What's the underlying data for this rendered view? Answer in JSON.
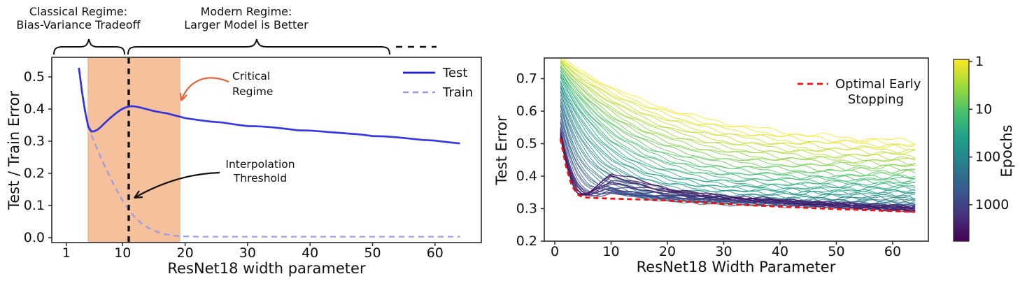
{
  "figure": {
    "background": "#ffffff",
    "top_annotations": {
      "classical": {
        "line1": "Classical Regime:",
        "line2": "Bias-Variance Tradeoff"
      },
      "modern": {
        "line1": "Modern Regime:",
        "line2": "Larger Model is Better"
      }
    }
  },
  "chart_data": [
    {
      "type": "line",
      "title": "",
      "xlabel": "ResNet18 width parameter",
      "ylabel": "Test / Train Error",
      "xlim": [
        0,
        67.5
      ],
      "ylim": [
        -0.015,
        0.561
      ],
      "grid": false,
      "legend_position": "upper right",
      "x_ticks": [
        "1",
        "10",
        "20",
        "30",
        "40",
        "50",
        "60"
      ],
      "x_tick_values": [
        1,
        10,
        20,
        30,
        40,
        50,
        60
      ],
      "y_ticks": [
        "0.0",
        "0.1",
        "0.2",
        "0.3",
        "0.4",
        "0.5"
      ],
      "y_tick_values": [
        0,
        0.1,
        0.2,
        0.3,
        0.4,
        0.5
      ],
      "critical_band": {
        "x_from": 4.4,
        "x_to": 19.3,
        "color": "#f5c19c"
      },
      "interpolation_threshold_x": 11,
      "annotations": {
        "critical_regime": {
          "line1": "Critical",
          "line2": "Regime",
          "color": "#e8623c"
        },
        "interpolation_threshold": {
          "line1": "Interpolation",
          "line2": "Threshold",
          "color": "#17100a"
        }
      },
      "series": [
        {
          "name": "Test",
          "color": "#1d1de0",
          "style": "solid",
          "x": [
            3,
            3.5,
            4,
            4.5,
            5,
            5.5,
            6,
            6.5,
            7,
            7.5,
            8,
            8.5,
            9,
            9.5,
            10,
            10.5,
            11,
            11.5,
            12,
            13,
            14,
            15,
            16,
            17,
            18,
            19,
            20,
            21,
            22,
            24,
            26,
            28,
            30,
            32,
            34,
            36,
            38,
            40,
            42,
            44,
            46,
            48,
            50,
            52,
            54,
            56,
            58,
            60,
            62,
            64
          ],
          "values": [
            0.528,
            0.452,
            0.392,
            0.345,
            0.33,
            0.331,
            0.336,
            0.344,
            0.354,
            0.363,
            0.372,
            0.38,
            0.388,
            0.395,
            0.401,
            0.405,
            0.408,
            0.409,
            0.408,
            0.404,
            0.399,
            0.394,
            0.39,
            0.387,
            0.382,
            0.377,
            0.372,
            0.369,
            0.366,
            0.361,
            0.358,
            0.352,
            0.347,
            0.346,
            0.343,
            0.339,
            0.334,
            0.333,
            0.33,
            0.327,
            0.324,
            0.321,
            0.316,
            0.315,
            0.312,
            0.308,
            0.304,
            0.302,
            0.297,
            0.293
          ]
        },
        {
          "name": "Train",
          "color": "#9a9ae2",
          "style": "dashed",
          "x": [
            3,
            3.5,
            4,
            4.5,
            5,
            5.5,
            6,
            6.5,
            7,
            7.5,
            8,
            8.5,
            9,
            9.5,
            10,
            10.5,
            11,
            11.5,
            12,
            13,
            14,
            15,
            16,
            17,
            18,
            19,
            20,
            21,
            22,
            24,
            26,
            28,
            30,
            32,
            34,
            36,
            38,
            40,
            42,
            44,
            46,
            48,
            50,
            52,
            54,
            56,
            58,
            60,
            62,
            64
          ],
          "values": [
            0.528,
            0.452,
            0.392,
            0.345,
            0.318,
            0.296,
            0.272,
            0.25,
            0.228,
            0.208,
            0.188,
            0.168,
            0.15,
            0.132,
            0.115,
            0.1,
            0.086,
            0.074,
            0.063,
            0.045,
            0.032,
            0.022,
            0.015,
            0.01,
            0.007,
            0.005,
            0.004,
            0.004,
            0.003,
            0.003,
            0.003,
            0.003,
            0.003,
            0.003,
            0.003,
            0.003,
            0.003,
            0.003,
            0.003,
            0.003,
            0.003,
            0.003,
            0.003,
            0.003,
            0.003,
            0.003,
            0.003,
            0.003,
            0.003,
            0.003
          ]
        }
      ]
    },
    {
      "type": "line",
      "title": "",
      "xlabel": "ResNet18 Width Parameter",
      "ylabel": "Test Error",
      "xlim": [
        -1.9,
        66.5
      ],
      "ylim": [
        0.2,
        0.763
      ],
      "grid": false,
      "x_ticks": [
        "0",
        "10",
        "20",
        "30",
        "40",
        "50",
        "60"
      ],
      "x_tick_values": [
        0,
        10,
        20,
        30,
        40,
        50,
        60
      ],
      "y_ticks": [
        "0.2",
        "0.3",
        "0.4",
        "0.5",
        "0.6",
        "0.7"
      ],
      "y_tick_values": [
        0.2,
        0.3,
        0.4,
        0.5,
        0.6,
        0.7
      ],
      "legend": {
        "line1": "Optimal Early",
        "line2": "Stopping"
      },
      "optimal_early_stopping": {
        "name": "Optimal Early Stopping",
        "color": "#ee1212",
        "style": "dashed",
        "x": [
          1,
          2,
          3,
          4,
          5,
          6,
          8,
          10,
          12,
          16,
          20,
          26,
          32,
          40,
          48,
          56,
          64
        ],
        "values": [
          0.515,
          0.43,
          0.372,
          0.344,
          0.335,
          0.334,
          0.332,
          0.331,
          0.33,
          0.328,
          0.325,
          0.319,
          0.313,
          0.306,
          0.3,
          0.295,
          0.29
        ]
      },
      "epoch_curves": {
        "colormap": "viridis reversed (yellow = 1 epoch, dark purple = thousands)",
        "rendered_curve_count": 56,
        "x": [
          1,
          2,
          3,
          4,
          5,
          6,
          8,
          10,
          12,
          16,
          20,
          26,
          32,
          40,
          48,
          56,
          64
        ],
        "anchors": [
          {
            "epochs": 1,
            "values": [
              0.767,
              0.755,
              0.743,
              0.732,
              0.721,
              0.711,
              0.692,
              0.674,
              0.658,
              0.63,
              0.607,
              0.579,
              0.558,
              0.537,
              0.523,
              0.513,
              0.506
            ]
          },
          {
            "epochs": 3,
            "values": [
              0.75,
              0.732,
              0.715,
              0.699,
              0.684,
              0.669,
              0.643,
              0.62,
              0.6,
              0.566,
              0.54,
              0.511,
              0.491,
              0.474,
              0.464,
              0.458,
              0.454
            ]
          },
          {
            "epochs": 10,
            "values": [
              0.731,
              0.704,
              0.68,
              0.658,
              0.637,
              0.618,
              0.584,
              0.556,
              0.532,
              0.494,
              0.467,
              0.44,
              0.424,
              0.412,
              0.405,
              0.402,
              0.401
            ]
          },
          {
            "epochs": 30,
            "values": [
              0.709,
              0.673,
              0.64,
              0.611,
              0.585,
              0.562,
              0.522,
              0.49,
              0.465,
              0.428,
              0.405,
              0.385,
              0.374,
              0.368,
              0.365,
              0.364,
              0.363
            ]
          },
          {
            "epochs": 100,
            "values": [
              0.668,
              0.617,
              0.573,
              0.536,
              0.505,
              0.48,
              0.44,
              0.414,
              0.395,
              0.368,
              0.352,
              0.34,
              0.335,
              0.331,
              0.33,
              0.33,
              0.329
            ]
          },
          {
            "epochs": 300,
            "values": [
              0.614,
              0.547,
              0.494,
              0.454,
              0.425,
              0.403,
              0.377,
              0.362,
              0.35,
              0.332,
              0.324,
              0.317,
              0.313,
              0.311,
              0.309,
              0.308,
              0.307
            ]
          },
          {
            "epochs": 1000,
            "values": [
              0.545,
              0.465,
              0.411,
              0.375,
              0.353,
              0.341,
              0.339,
              0.347,
              0.344,
              0.34,
              0.336,
              0.33,
              0.325,
              0.318,
              0.311,
              0.305,
              0.3
            ]
          },
          {
            "epochs": 4000,
            "values": [
              0.52,
              0.438,
              0.378,
              0.345,
              0.338,
              0.346,
              0.382,
              0.408,
              0.401,
              0.381,
              0.362,
              0.345,
              0.335,
              0.325,
              0.315,
              0.307,
              0.297
            ]
          }
        ]
      },
      "colorbar": {
        "label": "Epochs",
        "scale": "log",
        "ticks": [
          "1",
          "10",
          "100",
          "1000"
        ],
        "tick_values": [
          1,
          10,
          100,
          1000
        ],
        "range_max": 5800
      }
    }
  ]
}
